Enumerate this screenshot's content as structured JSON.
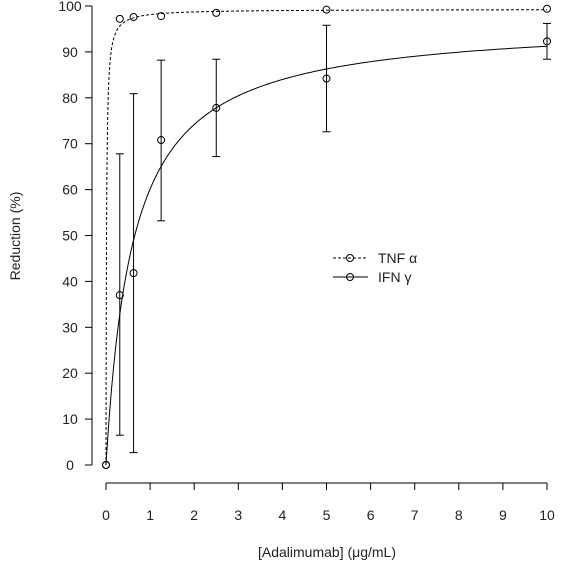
{
  "chart_data": {
    "type": "scatter",
    "title": "",
    "xlabel": "[Adalimumab]  (μg/mL)",
    "ylabel": "Reduction (%)",
    "xlim": [
      0,
      10
    ],
    "ylim": [
      0,
      100
    ],
    "x_ticks": [
      "0",
      "1",
      "2",
      "3",
      "4",
      "5",
      "6",
      "7",
      "8",
      "9",
      "10"
    ],
    "y_ticks": [
      "0",
      "10",
      "20",
      "30",
      "40",
      "50",
      "60",
      "70",
      "80",
      "90",
      "100"
    ],
    "grid": false,
    "legend_position": "center",
    "series": [
      {
        "name": "TNF α",
        "line_style": "dashed",
        "x": [
          0,
          0.3125,
          0.625,
          1.25,
          2.5,
          5,
          10
        ],
        "y": [
          0,
          97.2,
          97.6,
          97.8,
          98.5,
          99.2,
          99.4
        ],
        "fit": {
          "model": "hyperbolic",
          "bottom": 0,
          "top": 99.3,
          "ec50": 0.012
        }
      },
      {
        "name": "IFN γ",
        "line_style": "solid",
        "x": [
          0,
          0.3125,
          0.625,
          1.25,
          2.5,
          5,
          10
        ],
        "y": [
          0,
          37,
          41.8,
          70.8,
          77.8,
          84.2,
          92.3
        ],
        "error_low": [
          0,
          6.5,
          2.7,
          53.2,
          67.2,
          72.6,
          88.4
        ],
        "error_high": [
          0,
          67.8,
          80.9,
          88.2,
          88.4,
          95.8,
          96.2
        ],
        "fit": {
          "model": "hyperbolic",
          "bottom": 0,
          "top": 96.8,
          "ec50": 0.61
        }
      }
    ]
  }
}
